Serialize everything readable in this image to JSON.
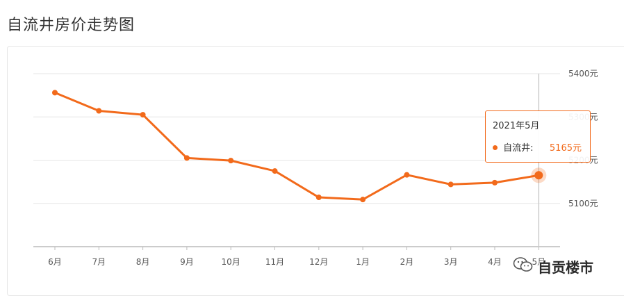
{
  "page": {
    "title": "自流井房价走势图"
  },
  "chart_data": {
    "type": "line",
    "categories": [
      "6月",
      "7月",
      "8月",
      "9月",
      "10月",
      "11月",
      "12月",
      "1月",
      "2月",
      "3月",
      "4月",
      "5月"
    ],
    "series": [
      {
        "name": "自流井",
        "values": [
          5356,
          5314,
          5305,
          5205,
          5199,
          5175,
          5114,
          5109,
          5166,
          5144,
          5148,
          5165
        ]
      }
    ],
    "ylim": [
      5000,
      5400
    ],
    "yticks": [
      "5100元",
      "5200元",
      "5300元",
      "5400元"
    ],
    "grid": true,
    "colors": {
      "line": "#f26a1b",
      "grid": "#e6e6e6",
      "axis": "#bbbbbb"
    }
  },
  "tooltip": {
    "date": "2021年5月",
    "series_label": "自流井:",
    "value": "5165元"
  },
  "watermark": {
    "text": "自贡楼市",
    "icon": "wechat-icon"
  }
}
